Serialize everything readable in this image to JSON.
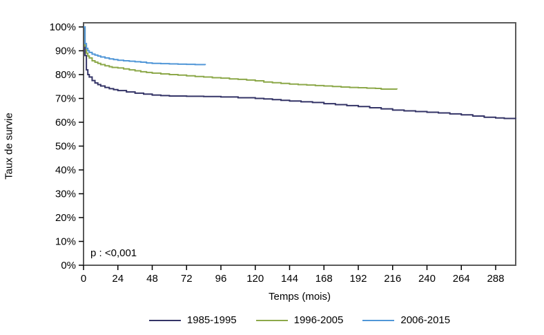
{
  "axes": {
    "x_label": "Temps (mois)",
    "y_label": "Taux de survie"
  },
  "annotation": {
    "p_value": "p : <0,001"
  },
  "legend": {
    "items": [
      {
        "label": "1985-1995",
        "color": "#333366"
      },
      {
        "label": "1996-2005",
        "color": "#8CA849"
      },
      {
        "label": "2006-2015",
        "color": "#5096D7"
      }
    ]
  },
  "chart_data": {
    "type": "line",
    "subtype": "kaplan-meier-step-survival",
    "title": "",
    "xlabel": "Temps (mois)",
    "ylabel": "Taux de survie",
    "xlim": [
      0,
      302
    ],
    "ylim": [
      0,
      100
    ],
    "x_ticks": [
      0,
      24,
      48,
      72,
      96,
      120,
      144,
      168,
      192,
      216,
      240,
      264,
      288
    ],
    "y_ticks": [
      0,
      10,
      20,
      30,
      40,
      50,
      60,
      70,
      80,
      90,
      100
    ],
    "y_tick_suffix": "%",
    "grid": false,
    "legend_position": "bottom",
    "annotation_text": "p : <0,001",
    "frame_color": "#595959",
    "tick_color": "#000000",
    "series": [
      {
        "name": "1985-1995",
        "color": "#333366",
        "points": [
          [
            0,
            100
          ],
          [
            1,
            88
          ],
          [
            2,
            82
          ],
          [
            3,
            80
          ],
          [
            4,
            79
          ],
          [
            6,
            77.5
          ],
          [
            8,
            76.5
          ],
          [
            10,
            75.8
          ],
          [
            12,
            75.2
          ],
          [
            15,
            74.6
          ],
          [
            18,
            74.1
          ],
          [
            21,
            73.7
          ],
          [
            24,
            73.3
          ],
          [
            30,
            72.7
          ],
          [
            36,
            72.2
          ],
          [
            42,
            71.8
          ],
          [
            48,
            71.4
          ],
          [
            54,
            71.2
          ],
          [
            60,
            71.0
          ],
          [
            72,
            70.9
          ],
          [
            84,
            70.8
          ],
          [
            96,
            70.6
          ],
          [
            108,
            70.3
          ],
          [
            120,
            70.0
          ],
          [
            126,
            69.8
          ],
          [
            132,
            69.5
          ],
          [
            138,
            69.2
          ],
          [
            144,
            68.9
          ],
          [
            152,
            68.6
          ],
          [
            160,
            68.3
          ],
          [
            168,
            67.8
          ],
          [
            176,
            67.4
          ],
          [
            184,
            67.0
          ],
          [
            192,
            66.6
          ],
          [
            200,
            66.1
          ],
          [
            208,
            65.6
          ],
          [
            216,
            65.1
          ],
          [
            224,
            64.8
          ],
          [
            232,
            64.5
          ],
          [
            240,
            64.2
          ],
          [
            248,
            63.9
          ],
          [
            256,
            63.5
          ],
          [
            264,
            63.1
          ],
          [
            272,
            62.6
          ],
          [
            280,
            62.1
          ],
          [
            288,
            61.8
          ],
          [
            294,
            61.6
          ],
          [
            302,
            61.5
          ]
        ]
      },
      {
        "name": "1996-2005",
        "color": "#8CA849",
        "points": [
          [
            0,
            100
          ],
          [
            1,
            92
          ],
          [
            2,
            89
          ],
          [
            3,
            87.8
          ],
          [
            4,
            87
          ],
          [
            6,
            85.8
          ],
          [
            8,
            85.2
          ],
          [
            10,
            84.7
          ],
          [
            12,
            84.2
          ],
          [
            15,
            83.7
          ],
          [
            18,
            83.3
          ],
          [
            20,
            83.0
          ],
          [
            24,
            82.8
          ],
          [
            28,
            82.4
          ],
          [
            32,
            82.0
          ],
          [
            36,
            81.6
          ],
          [
            40,
            81.2
          ],
          [
            44,
            80.9
          ],
          [
            48,
            80.6
          ],
          [
            54,
            80.3
          ],
          [
            60,
            80.0
          ],
          [
            66,
            79.8
          ],
          [
            72,
            79.5
          ],
          [
            78,
            79.2
          ],
          [
            84,
            79.0
          ],
          [
            90,
            78.7
          ],
          [
            96,
            78.5
          ],
          [
            102,
            78.2
          ],
          [
            108,
            78.0
          ],
          [
            114,
            77.7
          ],
          [
            120,
            77.4
          ],
          [
            126,
            76.9
          ],
          [
            132,
            76.6
          ],
          [
            138,
            76.3
          ],
          [
            144,
            76.0
          ],
          [
            150,
            75.8
          ],
          [
            156,
            75.6
          ],
          [
            162,
            75.4
          ],
          [
            168,
            75.2
          ],
          [
            174,
            75.0
          ],
          [
            180,
            74.8
          ],
          [
            186,
            74.6
          ],
          [
            192,
            74.5
          ],
          [
            198,
            74.3
          ],
          [
            204,
            74.2
          ],
          [
            208,
            73.9
          ],
          [
            219,
            73.8
          ]
        ]
      },
      {
        "name": "2006-2015",
        "color": "#5096D7",
        "points": [
          [
            0,
            100
          ],
          [
            1,
            93
          ],
          [
            2,
            91
          ],
          [
            3,
            90
          ],
          [
            4,
            89.3
          ],
          [
            6,
            88.6
          ],
          [
            8,
            88.2
          ],
          [
            10,
            87.8
          ],
          [
            12,
            87.4
          ],
          [
            15,
            87.0
          ],
          [
            18,
            86.6
          ],
          [
            21,
            86.3
          ],
          [
            24,
            86.0
          ],
          [
            28,
            85.8
          ],
          [
            32,
            85.6
          ],
          [
            36,
            85.4
          ],
          [
            40,
            85.2
          ],
          [
            44,
            84.9
          ],
          [
            48,
            84.7
          ],
          [
            54,
            84.6
          ],
          [
            60,
            84.5
          ],
          [
            66,
            84.4
          ],
          [
            72,
            84.3
          ],
          [
            78,
            84.2
          ],
          [
            85,
            84.0
          ]
        ]
      }
    ]
  }
}
